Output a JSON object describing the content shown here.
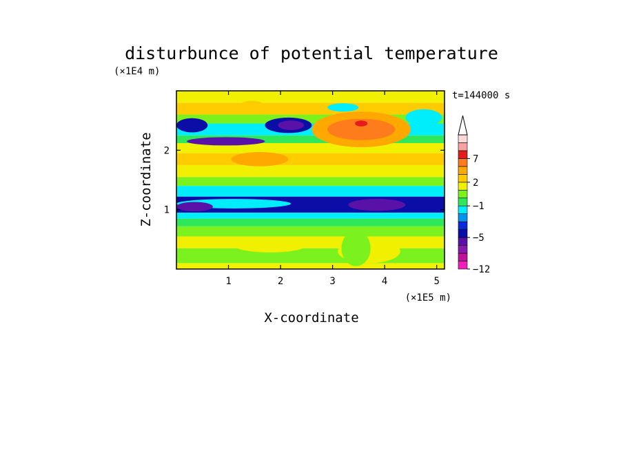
{
  "chart_data": {
    "type": "heatmap",
    "title": "disturbunce of potential temperature",
    "time_label": "t=144000 s",
    "xlabel": "X-coordinate",
    "ylabel": "Z-coordinate",
    "x_unit": "(×1E5 m)",
    "y_unit": "(×1E4 m)",
    "xlim": [
      0,
      5.15
    ],
    "ylim": [
      0,
      3.0
    ],
    "x_ticks": [
      "1",
      "2",
      "3",
      "4",
      "5"
    ],
    "x_tick_values": [
      1,
      2,
      3,
      4,
      5
    ],
    "y_ticks": [
      "1",
      "2"
    ],
    "y_tick_values": [
      1,
      2
    ],
    "colorbar": {
      "levels": [
        -12,
        -10,
        -8,
        -6,
        -5,
        -4,
        -3,
        -2,
        -1,
        0,
        1,
        2,
        3,
        5,
        7,
        9,
        11
      ],
      "colors": [
        "#f21fbf",
        "#c0129a",
        "#8b18ac",
        "#5a11a8",
        "#0a0da6",
        "#0a27d9",
        "#0094ee",
        "#00eefc",
        "#2ee85a",
        "#7bf21e",
        "#f0f000",
        "#ffcc00",
        "#ffa800",
        "#ff7c1c",
        "#e41c1c",
        "#f7a1a1",
        "#ffd8d8"
      ],
      "tick_labels": [
        "-12",
        "-5",
        "-1",
        "2",
        "7"
      ],
      "tick_values": [
        -12,
        -5,
        -1,
        2,
        7
      ]
    },
    "bands": [
      {
        "z": [
          0.0,
          0.1
        ],
        "value": 1.5
      },
      {
        "z": [
          0.1,
          0.35
        ],
        "value": 0.8
      },
      {
        "z": [
          0.35,
          0.55
        ],
        "value": 1.8
      },
      {
        "z": [
          0.55,
          0.72
        ],
        "value": 0.5
      },
      {
        "z": [
          0.72,
          0.85
        ],
        "value": -0.5
      },
      {
        "z": [
          0.85,
          0.95
        ],
        "value": -1.5
      },
      {
        "z": [
          0.95,
          1.22
        ],
        "value": -4.5
      },
      {
        "z": [
          1.22,
          1.4
        ],
        "value": -1.5
      },
      {
        "z": [
          1.4,
          1.55
        ],
        "value": 0.5
      },
      {
        "z": [
          1.55,
          1.75
        ],
        "value": 1.8
      },
      {
        "z": [
          1.75,
          1.95
        ],
        "value": 2.5
      },
      {
        "z": [
          1.95,
          2.12
        ],
        "value": 1.5
      },
      {
        "z": [
          2.12,
          2.25
        ],
        "value": -0.5
      },
      {
        "z": [
          2.25,
          2.45
        ],
        "value": -1.5
      },
      {
        "z": [
          2.45,
          2.6
        ],
        "value": 0.8
      },
      {
        "z": [
          2.6,
          2.8
        ],
        "value": 2.0
      },
      {
        "z": [
          2.8,
          3.0
        ],
        "value": 1.2
      }
    ],
    "features": [
      {
        "x": 2.15,
        "z": 2.42,
        "rx": 0.45,
        "rz": 0.13,
        "value": -4.5
      },
      {
        "x": 2.2,
        "z": 2.42,
        "rx": 0.25,
        "rz": 0.08,
        "value": -5.5
      },
      {
        "x": 0.95,
        "z": 2.15,
        "rx": 0.75,
        "rz": 0.07,
        "value": -5.5
      },
      {
        "x": 0.3,
        "z": 2.42,
        "rx": 0.3,
        "rz": 0.12,
        "value": -4.5
      },
      {
        "x": 3.55,
        "z": 2.35,
        "rx": 0.95,
        "rz": 0.3,
        "value": 3.0
      },
      {
        "x": 3.55,
        "z": 2.35,
        "rx": 0.65,
        "rz": 0.18,
        "value": 5.0
      },
      {
        "x": 3.55,
        "z": 2.45,
        "rx": 0.12,
        "rz": 0.05,
        "value": 8.0
      },
      {
        "x": 3.2,
        "z": 2.72,
        "rx": 0.3,
        "rz": 0.07,
        "value": -1.5
      },
      {
        "x": 4.75,
        "z": 2.55,
        "rx": 0.35,
        "rz": 0.14,
        "value": -1.5
      },
      {
        "x": 1.45,
        "z": 2.75,
        "rx": 0.25,
        "rz": 0.08,
        "value": 2.5
      },
      {
        "x": 1.6,
        "z": 1.85,
        "rx": 0.55,
        "rz": 0.12,
        "value": 3.0
      },
      {
        "x": 1.1,
        "z": 1.1,
        "rx": 1.1,
        "rz": 0.08,
        "value": -1.5
      },
      {
        "x": 3.85,
        "z": 1.08,
        "rx": 0.55,
        "rz": 0.1,
        "value": -5.5
      },
      {
        "x": 0.35,
        "z": 1.05,
        "rx": 0.35,
        "rz": 0.08,
        "value": -5.5
      },
      {
        "x": 3.7,
        "z": 0.3,
        "rx": 0.6,
        "rz": 0.2,
        "value": 1.5
      },
      {
        "x": 1.8,
        "z": 0.4,
        "rx": 0.7,
        "rz": 0.12,
        "value": 1.8
      },
      {
        "x": 3.45,
        "z": 0.35,
        "rx": 0.28,
        "rz": 0.3,
        "value": 0.3
      }
    ]
  }
}
